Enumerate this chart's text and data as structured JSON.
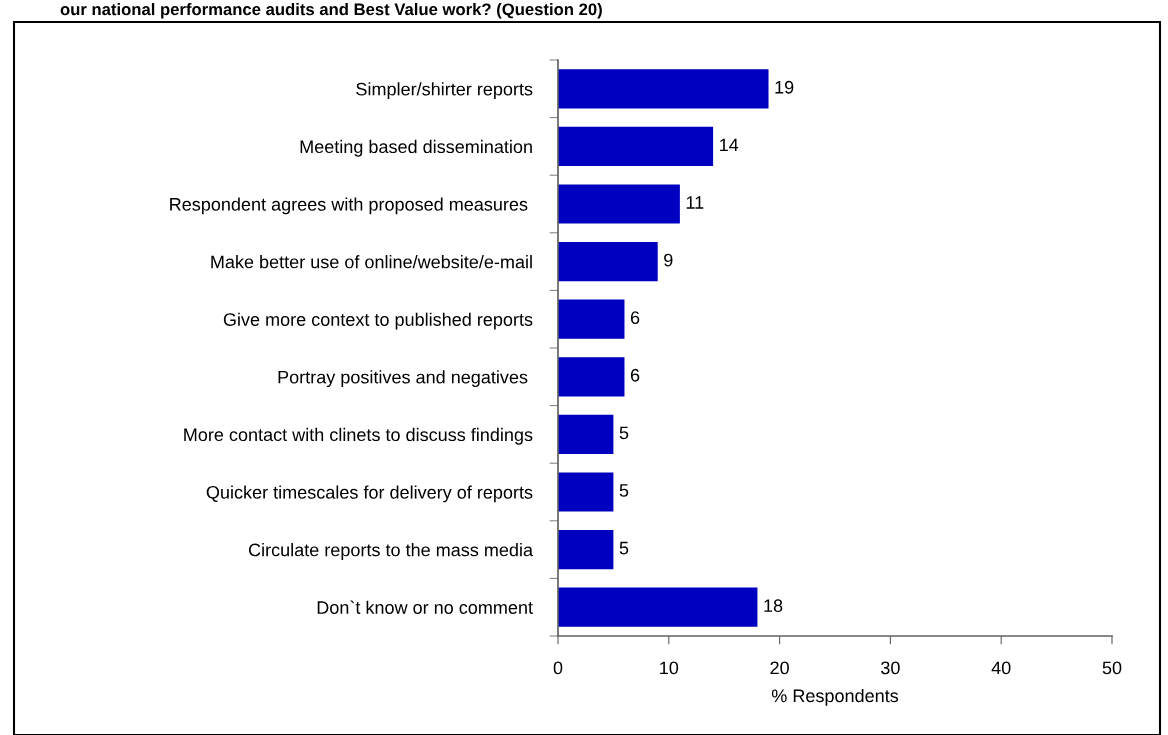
{
  "chart_data": {
    "type": "bar",
    "orientation": "horizontal",
    "title": "our national performance audits and Best Value work? (Question 20)",
    "xlabel": "% Respondents",
    "categories": [
      "Simpler/shirter reports",
      "Meeting based dissemination",
      "Respondent agrees with proposed measures ",
      "Make better use of online/website/e-mail",
      "Give more context to published reports",
      "Portray positives and negatives ",
      "More contact with clinets to discuss findings",
      "Quicker timescales for delivery of reports",
      "Circulate reports to the mass media",
      "Don`t know or no comment"
    ],
    "values": [
      19,
      14,
      11,
      9,
      6,
      6,
      5,
      5,
      5,
      18
    ],
    "color": "#0000c0",
    "xlim": [
      0,
      50
    ],
    "xticks": [
      0,
      10,
      20,
      30,
      40,
      50
    ],
    "data_labels": true,
    "grid": false,
    "legend": false
  }
}
